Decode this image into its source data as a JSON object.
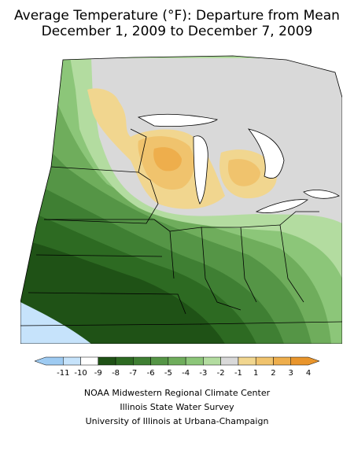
{
  "title_line1": "Average Temperature (°F): Departure from Mean",
  "title_line2": "December 1, 2009 to December 7, 2009",
  "legend": {
    "labels": [
      "-11",
      "-10",
      "-9",
      "-8",
      "-7",
      "-6",
      "-5",
      "-4",
      "-3",
      "-2",
      "-1",
      "1",
      "2",
      "3",
      "4"
    ],
    "colors": [
      "#9ecbf2",
      "#c6e3fb",
      "#ffffff",
      "#1f5216",
      "#2d6a22",
      "#3f7f33",
      "#559546",
      "#6fad5c",
      "#8cc679",
      "#b3dca0",
      "#d9d9d9",
      "#f1d68f",
      "#f0c36d",
      "#eeae4c",
      "#e9952c"
    ]
  },
  "credits": [
    "NOAA Midwestern Regional Climate Center",
    "Illinois State Water Survey",
    "University of Illinois at Urbana-Champaign"
  ]
}
